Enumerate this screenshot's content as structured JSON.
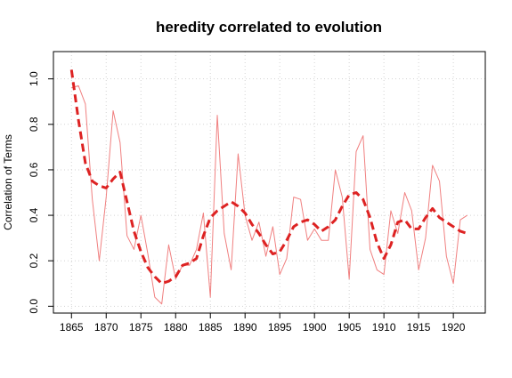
{
  "chart_data": {
    "type": "line",
    "title": "heredity correlated to evolution",
    "xlabel": "",
    "ylabel": "Correlation of Terms",
    "xlim": [
      1862.4,
      1924.6
    ],
    "ylim": [
      -0.03,
      1.12
    ],
    "xticks": [
      1865,
      1870,
      1875,
      1880,
      1885,
      1890,
      1895,
      1900,
      1905,
      1910,
      1915,
      1920
    ],
    "yticks": [
      0.0,
      0.2,
      0.4,
      0.6,
      0.8,
      1.0
    ],
    "grid": true,
    "x": [
      1865,
      1866,
      1867,
      1868,
      1869,
      1870,
      1871,
      1872,
      1873,
      1874,
      1875,
      1876,
      1877,
      1878,
      1879,
      1880,
      1881,
      1882,
      1883,
      1884,
      1885,
      1886,
      1887,
      1888,
      1889,
      1890,
      1891,
      1892,
      1893,
      1894,
      1895,
      1896,
      1897,
      1898,
      1899,
      1900,
      1901,
      1902,
      1903,
      1904,
      1905,
      1906,
      1907,
      1908,
      1909,
      1910,
      1911,
      1912,
      1913,
      1914,
      1915,
      1916,
      1917,
      1918,
      1919,
      1920,
      1921,
      1922
    ],
    "series": [
      {
        "name": "",
        "color": "#f08080",
        "style": "solid",
        "values": [
          0.96,
          0.97,
          0.89,
          0.47,
          0.2,
          0.48,
          0.86,
          0.72,
          0.31,
          0.25,
          0.4,
          0.23,
          0.04,
          0.01,
          0.27,
          0.12,
          0.18,
          0.18,
          0.25,
          0.41,
          0.04,
          0.84,
          0.32,
          0.16,
          0.67,
          0.4,
          0.29,
          0.37,
          0.22,
          0.35,
          0.14,
          0.21,
          0.48,
          0.47,
          0.29,
          0.34,
          0.29,
          0.29,
          0.6,
          0.48,
          0.12,
          0.68,
          0.75,
          0.25,
          0.16,
          0.14,
          0.42,
          0.32,
          0.5,
          0.42,
          0.16,
          0.3,
          0.62,
          0.55,
          0.22,
          0.1,
          0.38,
          0.4
        ]
      },
      {
        "name": "",
        "color": "#dd2222",
        "style": "dashed",
        "values": [
          1.04,
          0.82,
          0.63,
          0.55,
          0.53,
          0.52,
          0.56,
          0.59,
          0.46,
          0.33,
          0.24,
          0.17,
          0.13,
          0.1,
          0.11,
          0.13,
          0.18,
          0.19,
          0.21,
          0.31,
          0.39,
          0.42,
          0.44,
          0.46,
          0.44,
          0.41,
          0.36,
          0.32,
          0.27,
          0.23,
          0.24,
          0.29,
          0.35,
          0.37,
          0.38,
          0.36,
          0.33,
          0.35,
          0.38,
          0.44,
          0.49,
          0.5,
          0.47,
          0.39,
          0.28,
          0.21,
          0.27,
          0.37,
          0.38,
          0.34,
          0.34,
          0.39,
          0.43,
          0.39,
          0.37,
          0.35,
          0.33,
          0.32
        ]
      }
    ]
  }
}
